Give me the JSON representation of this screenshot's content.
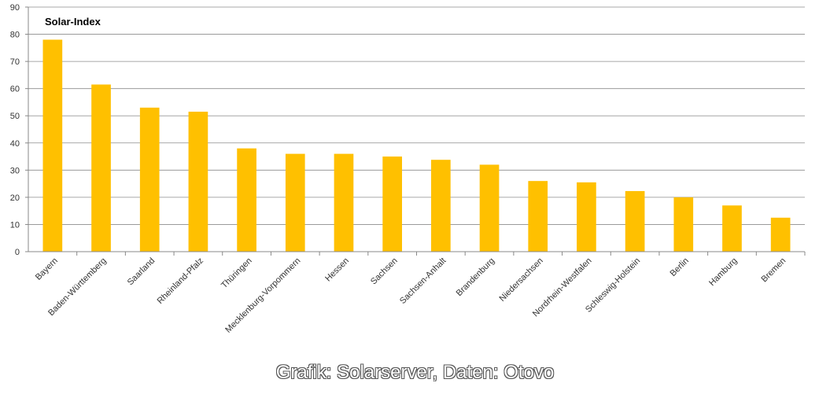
{
  "chart_data": {
    "type": "bar",
    "title": "Solar-Index",
    "categories": [
      "Bayern",
      "Baden-Württemberg",
      "Saarland",
      "Rheinland-Pfalz",
      "Thüringen",
      "Mecklenburg-Vorpommern",
      "Hessen",
      "Sachsen",
      "Sachsen-Anhalt",
      "Brandenburg",
      "Niedersachsen",
      "Nordrhein-Westfalen",
      "Schleswig-Holstein",
      "Berlin",
      "Hamburg",
      "Bremen"
    ],
    "values": [
      78,
      61.5,
      53,
      51.5,
      38,
      36,
      36,
      35,
      33.8,
      32,
      26,
      25.5,
      22.3,
      20,
      17,
      12.5
    ],
    "ylim": [
      0,
      90
    ],
    "yticks": [
      "0",
      "10",
      "20",
      "30",
      "40",
      "50",
      "60",
      "70",
      "80",
      "90"
    ],
    "grid": true,
    "bar_color": "#FFC000"
  },
  "credit": "Grafik: Solarserver, Daten: Otovo"
}
